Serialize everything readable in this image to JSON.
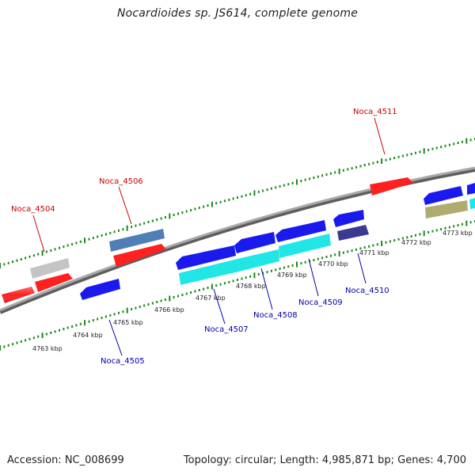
{
  "title": "Nocardioides sp. JS614, complete genome",
  "footer": {
    "accession": "Accession: NC_008699",
    "summary": "Topology: circular; Length: 4,985,871 bp; Genes: 4,700"
  },
  "colors": {
    "backbone": "#8a8a8a",
    "ticks": "#1a8a1a",
    "top_label": "#cc0000",
    "bottom_label": "#0000aa",
    "red_gene": "#ff2020",
    "blue_gene": "#1a1aee",
    "cyan_gene": "#22e6e6",
    "steel_gene": "#4f7fb5",
    "gray_gene": "#c0c0c0",
    "navy_gene": "#3a3a90",
    "olive_gene": "#b0ac70"
  },
  "scale_labels": [
    "4763 kbp",
    "4764 kbp",
    "4765 kbp",
    "4766 kbp",
    "4767 kbp",
    "4768 kbp",
    "4769 kbp",
    "4770 kbp",
    "4771 kbp",
    "4772 kbp",
    "4773 kbp"
  ],
  "gene_labels": {
    "noca_4504": "Noca_4504",
    "noca_4505": "Noca_4505",
    "noca_4506": "Noca_4506",
    "noca_4507": "Noca_4507",
    "noca_4508": "Noca_4508",
    "noca_4509": "Noca_4509",
    "noca_4510": "Noca_4510",
    "noca_4511": "Noca_4511"
  }
}
